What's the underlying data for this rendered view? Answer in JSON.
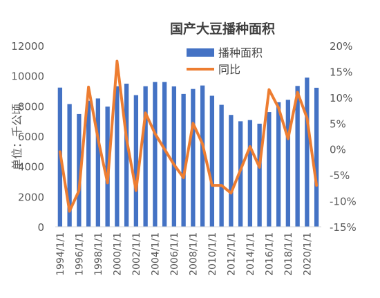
{
  "chart_data": {
    "type": "bar",
    "title": "国产大豆播种面积",
    "ylabel": "单位：千公顷",
    "y2label": "",
    "categories": [
      "1994/1/1",
      "1995/1/1",
      "1996/1/1",
      "1997/1/1",
      "1998/1/1",
      "1999/1/1",
      "2000/1/1",
      "2001/1/1",
      "2002/1/1",
      "2003/1/1",
      "2004/1/1",
      "2005/1/1",
      "2006/1/1",
      "2007/1/1",
      "2008/1/1",
      "2009/1/1",
      "2010/1/1",
      "2011/1/1",
      "2012/1/1",
      "2013/1/1",
      "2014/1/1",
      "2015/1/1",
      "2016/1/1",
      "2017/1/1",
      "2018/1/1",
      "2019/1/1",
      "2020/1/1",
      "2021/1/1"
    ],
    "x_tick_labels": [
      "1994/1/1",
      "1996/1/1",
      "1998/1/1",
      "2000/1/1",
      "2002/1/1",
      "2004/1/1",
      "2006/1/1",
      "2008/1/1",
      "2010/1/1",
      "2012/1/1",
      "2014/1/1",
      "2016/1/1",
      "2018/1/1",
      "2020/1/1"
    ],
    "y_ticks": [
      "0",
      "2000",
      "4000",
      "6000",
      "8000",
      "10000",
      "12000"
    ],
    "y2_ticks": [
      "-15%",
      "-10%",
      "-5%",
      "0%",
      "5%",
      "10%",
      "15%",
      "20%"
    ],
    "ylim": [
      0,
      12000
    ],
    "y2lim": [
      -15,
      20
    ],
    "legend_position": "top-center",
    "series": [
      {
        "name": "播种面积",
        "type": "bar",
        "color": "#4472C4",
        "axis": "left",
        "values": [
          9220,
          8130,
          7470,
          8350,
          8500,
          7960,
          9310,
          9480,
          8720,
          9310,
          9590,
          9590,
          9300,
          8800,
          9130,
          9360,
          8680,
          8080,
          7410,
          6990,
          7070,
          6830,
          7600,
          8250,
          8410,
          9330,
          9880,
          9210
        ]
      },
      {
        "name": "同比",
        "type": "line",
        "color": "#ED7D31",
        "axis": "right",
        "values": [
          -0.5,
          -12,
          -8,
          12,
          2,
          -6.5,
          17,
          2,
          -8,
          7,
          3,
          0,
          -3,
          -5.5,
          5,
          1,
          -7,
          -7,
          -8.5,
          -4,
          0.5,
          -3.5,
          11.5,
          8,
          2,
          11,
          6,
          -7
        ]
      }
    ]
  }
}
